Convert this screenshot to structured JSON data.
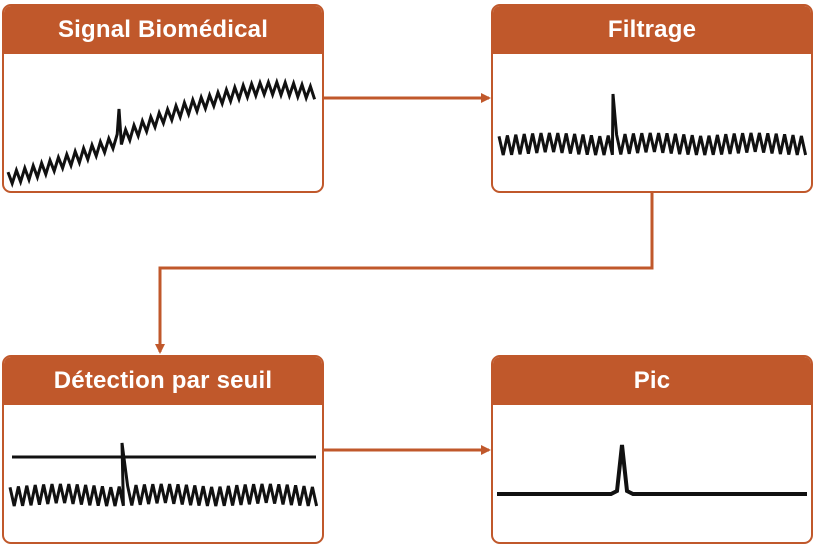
{
  "accent": "#c0582b",
  "boxes": {
    "raw": {
      "title": "Signal Biomédical"
    },
    "filter": {
      "title": "Filtrage"
    },
    "threshold": {
      "title": "Détection par seuil"
    },
    "peak": {
      "title": "Pic"
    }
  }
}
